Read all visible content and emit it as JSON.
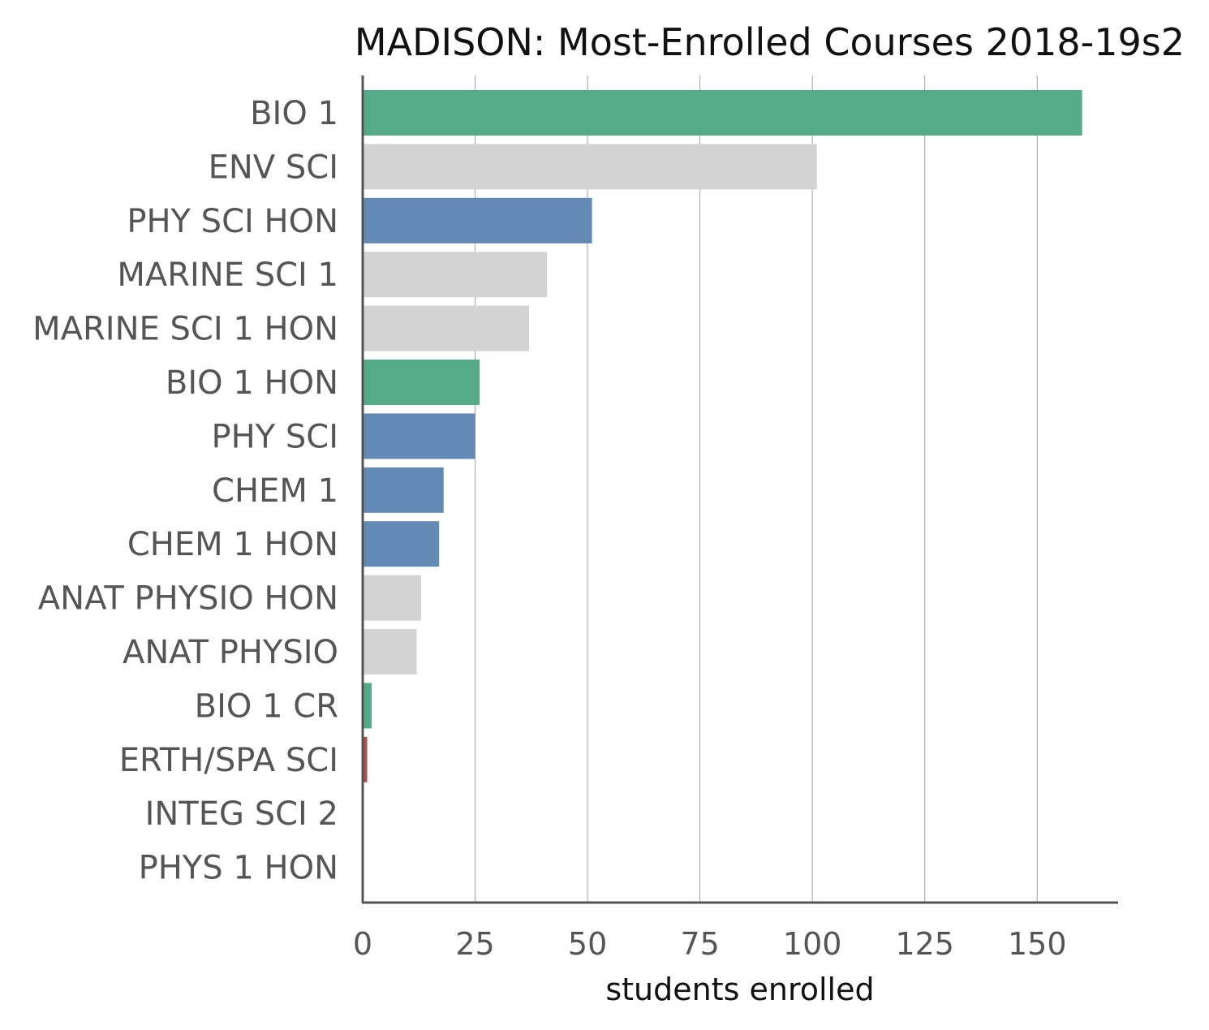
{
  "chart_data": {
    "type": "bar",
    "orientation": "horizontal",
    "title": "MADISON: Most-Enrolled Courses 2018-19s2",
    "xlabel": "students enrolled",
    "ylabel": "",
    "xlim": [
      0,
      168
    ],
    "xticks": [
      0,
      25,
      50,
      75,
      100,
      125,
      150
    ],
    "grid": "vertical",
    "categories": [
      "BIO 1",
      "ENV SCI",
      "PHY SCI HON",
      "MARINE SCI 1",
      "MARINE SCI 1 HON",
      "BIO 1 HON",
      "PHY SCI",
      "CHEM 1",
      "CHEM 1 HON",
      "ANAT PHYSIO HON",
      "ANAT PHYSIO",
      "BIO 1 CR",
      "ERTH/SPA SCI",
      "INTEG SCI 2",
      "PHYS 1 HON"
    ],
    "values": [
      160,
      101,
      51,
      41,
      37,
      26,
      25,
      18,
      17,
      13,
      12,
      2,
      1,
      0,
      0
    ],
    "bar_colors": [
      "#55ab87",
      "#d3d3d3",
      "#6389b5",
      "#d3d3d3",
      "#d3d3d3",
      "#55ab87",
      "#6389b5",
      "#6389b5",
      "#6389b5",
      "#d3d3d3",
      "#d3d3d3",
      "#55ab87",
      "#a9504f",
      "#d3d3d3",
      "#d3d3d3"
    ]
  },
  "colors": {
    "biology": "#55ab87",
    "physical": "#6389b5",
    "earth": "#a9504f",
    "other": "#d3d3d3",
    "axis": "#555555",
    "grid": "#a0a0a0"
  }
}
